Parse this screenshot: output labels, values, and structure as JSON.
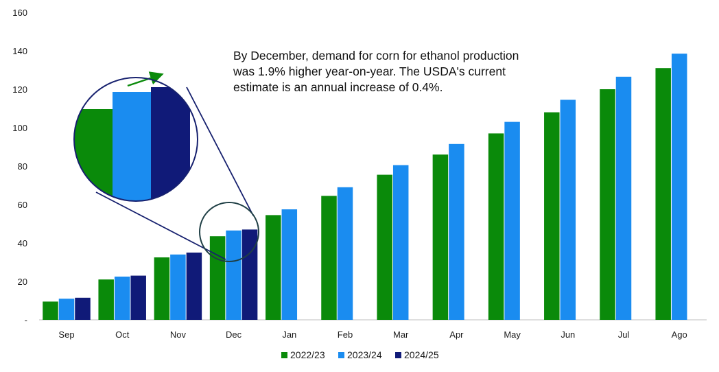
{
  "chart_data": {
    "type": "bar",
    "categories": [
      "Sep",
      "Oct",
      "Nov",
      "Dec",
      "Jan",
      "Feb",
      "Mar",
      "Apr",
      "May",
      "Jun",
      "Jul",
      "Ago"
    ],
    "series": [
      {
        "name": "2022/23",
        "color": "#0a8a0a",
        "values": [
          9.5,
          21,
          32.5,
          43.5,
          54.5,
          64.5,
          75.5,
          86,
          97,
          108,
          120,
          131
        ]
      },
      {
        "name": "2023/24",
        "color": "#1a8cf0",
        "values": [
          11,
          22.5,
          34,
          46.5,
          57.5,
          69,
          80.5,
          91.5,
          103,
          114.5,
          126.5,
          138.5
        ]
      },
      {
        "name": "2024/25",
        "color": "#101a78",
        "values": [
          11.5,
          23,
          35,
          47,
          null,
          null,
          null,
          null,
          null,
          null,
          null,
          null
        ]
      }
    ],
    "ylim": [
      0,
      160
    ],
    "yticks": [
      "-",
      "20",
      "40",
      "60",
      "80",
      "100",
      "120",
      "140",
      "160"
    ],
    "annotation": "By December, demand for corn for ethanol production was 1.9% higher year-on-year. The USDA's current estimate is an annual increase of 0.4%.",
    "legend_position": "bottom",
    "grid": false
  }
}
